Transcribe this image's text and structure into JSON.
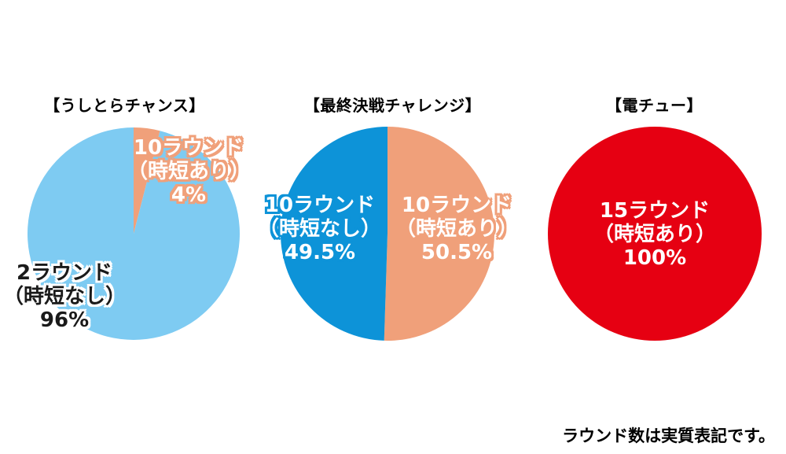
{
  "chart_data": [
    {
      "type": "pie",
      "title": "【うしとらチャンス】",
      "slices": [
        {
          "label_lines": [
            "2ラウンド",
            "（時短なし）",
            "96%"
          ],
          "value": 96,
          "color": "#7ecbf2",
          "text_color": "#1a1a1a",
          "outline_color": "#7ecbf2"
        },
        {
          "label_lines": [
            "10ラウンド",
            "（時短あり）",
            "4%"
          ],
          "value": 4,
          "color": "#f0a07a",
          "text_color": "#ffffff",
          "outline_color": "#f0a07a"
        }
      ]
    },
    {
      "type": "pie",
      "title": "【最終決戦チャレンジ】",
      "slices": [
        {
          "label_lines": [
            "10ラウンド",
            "（時短なし）",
            "49.5%"
          ],
          "value": 49.5,
          "color": "#0d93d8",
          "text_color": "#ffffff",
          "outline_color": "#0d93d8"
        },
        {
          "label_lines": [
            "10ラウンド",
            "（時短あり）",
            "50.5%"
          ],
          "value": 50.5,
          "color": "#f0a07a",
          "text_color": "#ffffff",
          "outline_color": "#f0a07a"
        }
      ]
    },
    {
      "type": "pie",
      "title": "【電チュー】",
      "slices": [
        {
          "label_lines": [
            "15ラウンド",
            "（時短あり）",
            "100%"
          ],
          "value": 100,
          "color": "#e60012",
          "text_color": "#ffffff",
          "outline_color": "#e60012"
        }
      ]
    }
  ],
  "footnote": "ラウンド数は実質表記です。"
}
